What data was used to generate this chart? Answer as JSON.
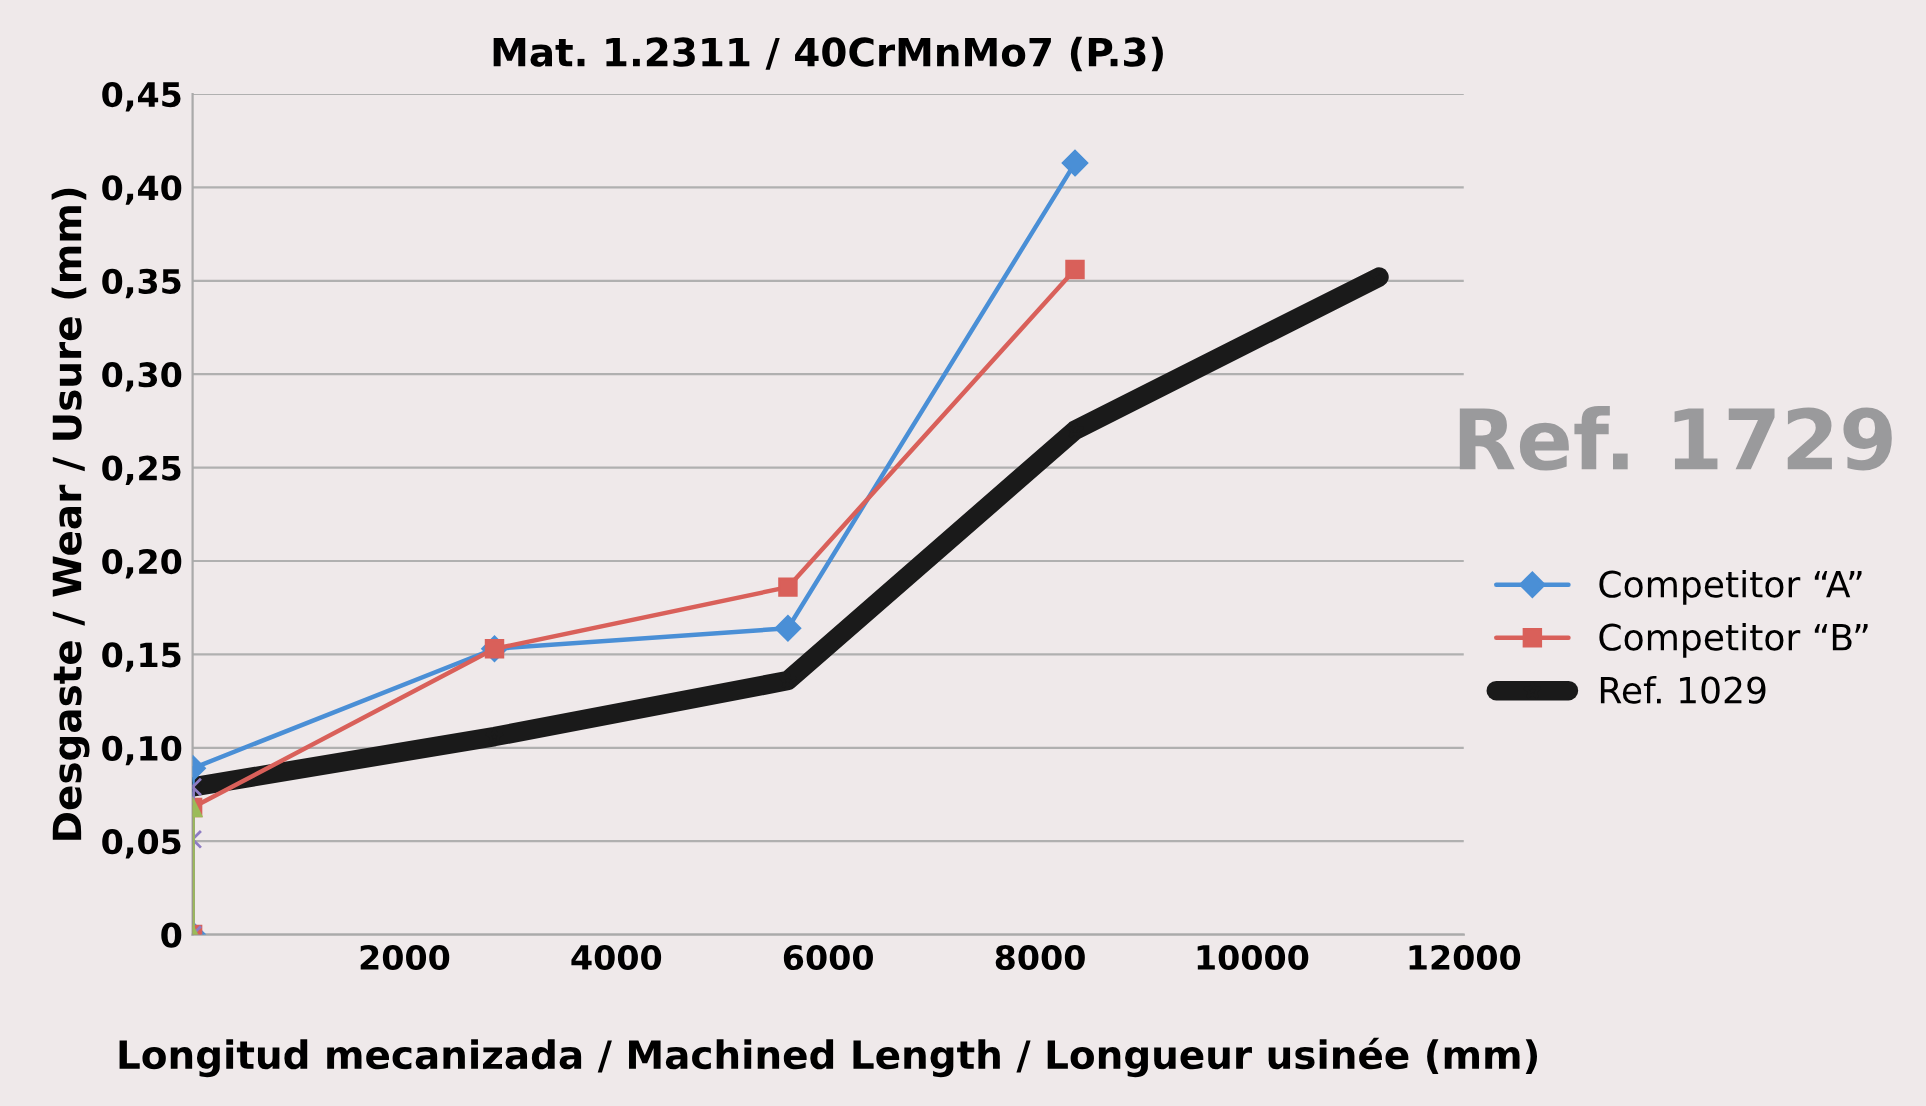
{
  "chart_data": {
    "type": "line",
    "title": "Mat. 1.2311 / 40CrMnMo7 (P.3)",
    "xlabel": "Longitud mecanizada / Machined Length / Longueur usinée (mm)",
    "ylabel": "Desgaste / Wear / Usure (mm)",
    "annotations": [
      "Ref. 1729"
    ],
    "series": [
      {
        "name": "Competitor “A”",
        "color": "#4a8fd6",
        "marker": "diamond",
        "x": [
          0,
          0,
          2850,
          5620,
          8330
        ],
        "values": [
          0,
          0.089,
          0.153,
          0.164,
          0.413
        ]
      },
      {
        "name": "Competitor “B”",
        "color": "#d9605a",
        "marker": "square",
        "x": [
          0,
          0,
          2850,
          5620,
          8330
        ],
        "values": [
          0,
          0.068,
          0.153,
          0.186,
          0.356
        ]
      },
      {
        "color": "#8e7cc3",
        "marker": "cross",
        "x": [
          0,
          0,
          0
        ],
        "values": [
          0,
          0.051,
          0.079
        ]
      },
      {
        "color": "#9bbb59",
        "marker": "triangle",
        "x": [
          0,
          0
        ],
        "values": [
          0,
          0.068
        ]
      },
      {
        "name": "Ref. 1029",
        "color": "#1a1a1a",
        "marker": "star",
        "x": [
          0,
          2850,
          5620,
          8330,
          11200
        ],
        "values": [
          0.079,
          0.106,
          0.136,
          0.27,
          0.352
        ]
      }
    ],
    "xlim": [
      0,
      12000
    ],
    "xticks": [
      2000,
      4000,
      6000,
      8000,
      10000,
      12000
    ],
    "ylim": [
      0,
      0.45
    ],
    "yticks": [
      0,
      {
        "value": 0.05,
        "label": "0,05"
      },
      {
        "value": 0.1,
        "label": "0,10"
      },
      {
        "value": 0.15,
        "label": "0,15"
      },
      {
        "value": 0.2,
        "label": "0,20"
      },
      {
        "value": 0.25,
        "label": "0,25"
      },
      {
        "value": 0.3,
        "label": "0,30"
      },
      {
        "value": 0.35,
        "label": "0,35"
      },
      {
        "value": 0.4,
        "label": "0,40"
      },
      {
        "value": 0.45,
        "label": "0,45"
      }
    ],
    "grid": "y",
    "legend": "right"
  }
}
